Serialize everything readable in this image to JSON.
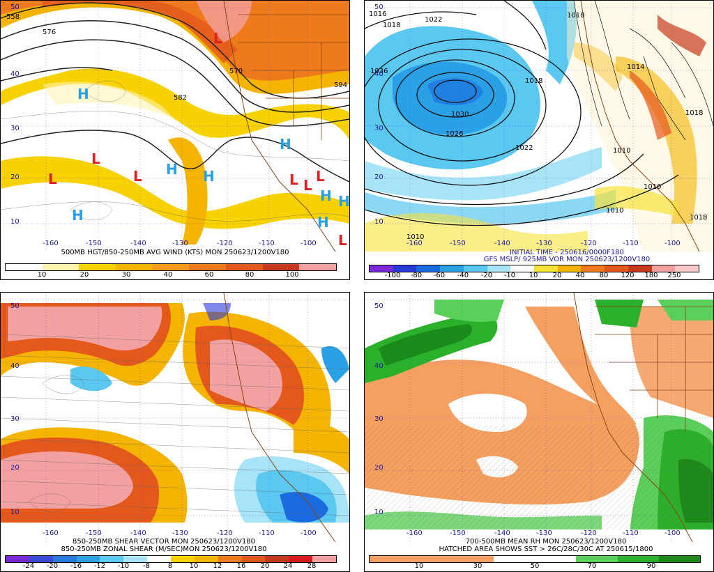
{
  "panels": [
    {
      "id": "p1",
      "caption1": "500MB HGT/850-250MB AVG WIND (KTS) MON 250623/1200V180",
      "colorbar": {
        "colors": [
          "#ffffff",
          "#fff4b0",
          "#f7d100",
          "#f5b400",
          "#f59a1a",
          "#ef7a1c",
          "#e5581c",
          "#c53a1c",
          "#f3a0a0"
        ],
        "ticks": [
          "10",
          "20",
          "30",
          "40",
          "60",
          "80",
          "100"
        ]
      },
      "lat_labels": [
        "50",
        "40",
        "30",
        "20",
        "10"
      ],
      "lon_labels": [
        "-160",
        "-150",
        "-140",
        "-130",
        "-120",
        "-110",
        "-100"
      ],
      "contour_labels": [
        "558",
        "576",
        "570",
        "582",
        "594"
      ],
      "markers": [
        {
          "t": "L",
          "c": "#e02020"
        },
        {
          "t": "H",
          "c": "#2aa0e0"
        },
        {
          "t": "L",
          "c": "#e02020"
        },
        {
          "t": "L",
          "c": "#e02020"
        },
        {
          "t": "L",
          "c": "#e02020"
        },
        {
          "t": "H",
          "c": "#2aa0e0"
        },
        {
          "t": "H",
          "c": "#2aa0e0"
        },
        {
          "t": "H",
          "c": "#2aa0e0"
        },
        {
          "t": "H",
          "c": "#2aa0e0"
        },
        {
          "t": "L",
          "c": "#e02020"
        },
        {
          "t": "L",
          "c": "#e02020"
        },
        {
          "t": "L",
          "c": "#e02020"
        },
        {
          "t": "H",
          "c": "#2aa0e0"
        },
        {
          "t": "H",
          "c": "#2aa0e0"
        },
        {
          "t": "H",
          "c": "#2aa0e0"
        },
        {
          "t": "L",
          "c": "#e02020"
        }
      ]
    },
    {
      "id": "p2",
      "caption0": "INITIAL TIME - 250616/0000F180",
      "caption1": "GFS MSLP/ 925MB VOR MON 250623/1200V180",
      "colorbar": {
        "colors": [
          "#7a2ad8",
          "#2a3ad8",
          "#1a6ae0",
          "#2aa0e6",
          "#5ac8f0",
          "#a8e4f8",
          "#ffffff",
          "#f7e23a",
          "#f5b400",
          "#ef7a1c",
          "#e5581c",
          "#c53a1c",
          "#f3a0a0",
          "#f8c8c8"
        ],
        "ticks": [
          "-100",
          "-80",
          "-60",
          "-40",
          "-20",
          "-10",
          "10",
          "20",
          "40",
          "80",
          "120",
          "180",
          "250"
        ]
      },
      "lat_labels": [
        "50",
        "40",
        "30",
        "20",
        "10"
      ],
      "lon_labels": [
        "-160",
        "-150",
        "-140",
        "-130",
        "-120",
        "-110",
        "-100"
      ],
      "contour_labels": [
        "1016",
        "1018",
        "1022",
        "1018",
        "1018",
        "1036",
        "1030",
        "1026",
        "1022",
        "1018",
        "1014",
        "1010",
        "1010",
        "1010",
        "1010",
        "1018"
      ]
    },
    {
      "id": "p3",
      "caption1": "850-250MB SHEAR VECTOR MON 250623/1200V180",
      "caption2": "850-250MB ZONAL SHEAR (M/SEC)MON 250623/1200V180",
      "colorbar": {
        "colors": [
          "#7a2ad8",
          "#3a4ad8",
          "#2a7ae0",
          "#2aa0e6",
          "#5ac8f0",
          "#a8e4f8",
          "#ffffff",
          "#f7d100",
          "#f5b400",
          "#ef7a1c",
          "#e5581c",
          "#c53a1c",
          "#d81c1c",
          "#f3a0a0"
        ],
        "ticks": [
          "-24",
          "-20",
          "-16",
          "-12",
          "-10",
          "-8",
          "8",
          "10",
          "12",
          "16",
          "20",
          "24",
          "28"
        ]
      },
      "lat_labels": [
        "50",
        "40",
        "30",
        "20",
        "10"
      ],
      "lon_labels": [
        "-160",
        "-150",
        "-140",
        "-130",
        "-120",
        "-110",
        "-100"
      ]
    },
    {
      "id": "p4",
      "caption1": "700-500MB MEAN RH MON 250623/1200V180",
      "caption2": "HATCHED AREA SHOWS SST > 26C/28C/30C AT 250615/1800",
      "colorbar": {
        "colors": [
          "#f5a060",
          "#f5a060",
          "#f5a060",
          "#ffffff",
          "#ffffff",
          "#5ad05a",
          "#2ab02a",
          "#1a8a1a"
        ],
        "ticks": [
          "10",
          "30",
          "50",
          "70",
          "90"
        ]
      },
      "lat_labels": [
        "50",
        "40",
        "30",
        "20",
        "10"
      ],
      "lon_labels": [
        "-160",
        "-150",
        "-140",
        "-130",
        "-120",
        "-110",
        "-100"
      ]
    }
  ]
}
